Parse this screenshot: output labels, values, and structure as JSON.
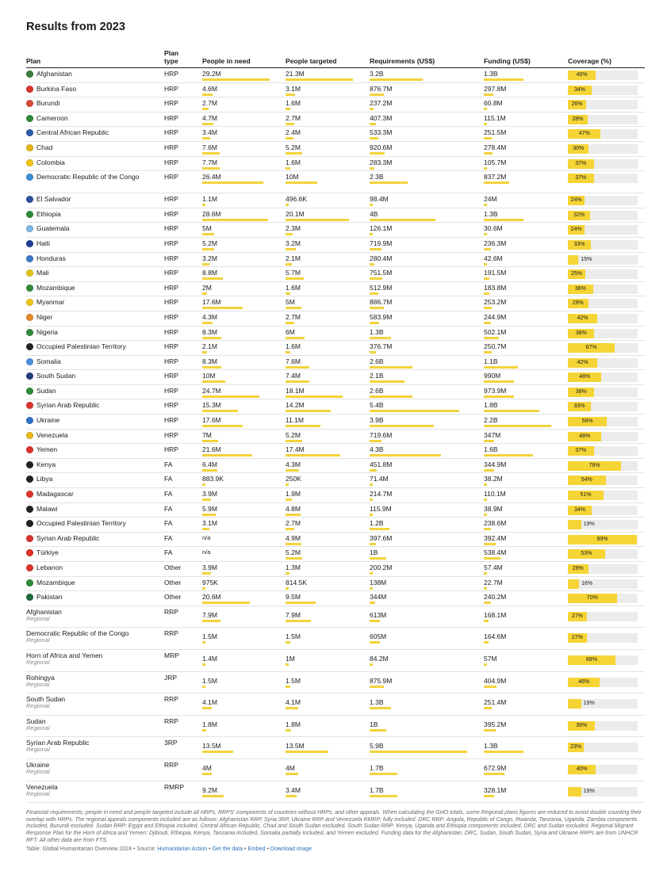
{
  "title": "Results from 2023",
  "headers": {
    "plan": "Plan",
    "plan_type": "Plan type",
    "pin": "People in need",
    "targeted": "People targeted",
    "requirements": "Requirements (US$)",
    "funding": "Funding (US$)",
    "coverage": "Coverage (%)"
  },
  "colors": {
    "bar": "#f3d33b",
    "coverage_track": "#ececec",
    "link": "#2a6ebb"
  },
  "rows": [
    {
      "plan": "Afghanistan",
      "sub": "",
      "type": "HRP",
      "pin": "29.2M",
      "pin_v": 29.2,
      "tgt": "21.3M",
      "tgt_v": 21.3,
      "req": "3.2B",
      "req_v": 3.2,
      "fund": "1.3B",
      "fund_v": 1.3,
      "cov": 40,
      "flag": "#3a7d3a"
    },
    {
      "plan": "Burkina Faso",
      "sub": "",
      "type": "HRP",
      "pin": "4.6M",
      "pin_v": 4.6,
      "tgt": "3.1M",
      "tgt_v": 3.1,
      "req": "876.7M",
      "req_v": 0.8767,
      "fund": "297.8M",
      "fund_v": 0.2978,
      "cov": 34,
      "flag": "#d8342d"
    },
    {
      "plan": "Burundi",
      "sub": "",
      "type": "HRP",
      "pin": "2.7M",
      "pin_v": 2.7,
      "tgt": "1.6M",
      "tgt_v": 1.6,
      "req": "237.2M",
      "req_v": 0.2372,
      "fund": "60.8M",
      "fund_v": 0.0608,
      "cov": 26,
      "flag": "#d84a3a"
    },
    {
      "plan": "Cameroon",
      "sub": "",
      "type": "HRP",
      "pin": "4.7M",
      "pin_v": 4.7,
      "tgt": "2.7M",
      "tgt_v": 2.7,
      "req": "407.3M",
      "req_v": 0.4073,
      "fund": "115.1M",
      "fund_v": 0.1151,
      "cov": 28,
      "flag": "#2f8a3a"
    },
    {
      "plan": "Central African Republic",
      "sub": "",
      "type": "HRP",
      "pin": "3.4M",
      "pin_v": 3.4,
      "tgt": "2.4M",
      "tgt_v": 2.4,
      "req": "533.3M",
      "req_v": 0.5333,
      "fund": "251.5M",
      "fund_v": 0.2515,
      "cov": 47,
      "flag": "#2e5ca8"
    },
    {
      "plan": "Chad",
      "sub": "",
      "type": "HRP",
      "pin": "7.6M",
      "pin_v": 7.6,
      "tgt": "5.2M",
      "tgt_v": 5.2,
      "req": "920.6M",
      "req_v": 0.9206,
      "fund": "278.4M",
      "fund_v": 0.2784,
      "cov": 30,
      "flag": "#e2b418"
    },
    {
      "plan": "Colombia",
      "sub": "",
      "type": "HRP",
      "pin": "7.7M",
      "pin_v": 7.7,
      "tgt": "1.6M",
      "tgt_v": 1.6,
      "req": "283.3M",
      "req_v": 0.2833,
      "fund": "105.7M",
      "fund_v": 0.1057,
      "cov": 37,
      "flag": "#f2c314"
    },
    {
      "plan": "Democratic Republic of the Congo",
      "sub": "",
      "type": "HRP",
      "pin": "26.4M",
      "pin_v": 26.4,
      "tgt": "10M",
      "tgt_v": 10,
      "req": "2.3B",
      "req_v": 2.3,
      "fund": "837.2M",
      "fund_v": 0.8372,
      "cov": 37,
      "flag": "#3a8fd6"
    },
    {
      "plan": "El Salvador",
      "sub": "",
      "type": "HRP",
      "pin": "1.1M",
      "pin_v": 1.1,
      "tgt": "496.6K",
      "tgt_v": 0.4966,
      "req": "98.4M",
      "req_v": 0.0984,
      "fund": "24M",
      "fund_v": 0.024,
      "cov": 24,
      "flag": "#2c4f9e"
    },
    {
      "plan": "Ethiopia",
      "sub": "",
      "type": "HRP",
      "pin": "28.6M",
      "pin_v": 28.6,
      "tgt": "20.1M",
      "tgt_v": 20.1,
      "req": "4B",
      "req_v": 4.0,
      "fund": "1.3B",
      "fund_v": 1.3,
      "cov": 32,
      "flag": "#2f8a3a"
    },
    {
      "plan": "Guatemala",
      "sub": "",
      "type": "HRP",
      "pin": "5M",
      "pin_v": 5.0,
      "tgt": "2.3M",
      "tgt_v": 2.3,
      "req": "126.1M",
      "req_v": 0.1261,
      "fund": "30.6M",
      "fund_v": 0.0306,
      "cov": 24,
      "flag": "#7fb6e6"
    },
    {
      "plan": "Haiti",
      "sub": "",
      "type": "HRP",
      "pin": "5.2M",
      "pin_v": 5.2,
      "tgt": "3.2M",
      "tgt_v": 3.2,
      "req": "719.9M",
      "req_v": 0.7199,
      "fund": "236.3M",
      "fund_v": 0.2363,
      "cov": 33,
      "flag": "#1f3f95"
    },
    {
      "plan": "Honduras",
      "sub": "",
      "type": "HRP",
      "pin": "3.2M",
      "pin_v": 3.2,
      "tgt": "2.1M",
      "tgt_v": 2.1,
      "req": "280.4M",
      "req_v": 0.2804,
      "fund": "42.6M",
      "fund_v": 0.0426,
      "cov": 15,
      "flag": "#3a78c6"
    },
    {
      "plan": "Mali",
      "sub": "",
      "type": "HRP",
      "pin": "8.8M",
      "pin_v": 8.8,
      "tgt": "5.7M",
      "tgt_v": 5.7,
      "req": "751.5M",
      "req_v": 0.7515,
      "fund": "191.5M",
      "fund_v": 0.1915,
      "cov": 25,
      "flag": "#e2c21a"
    },
    {
      "plan": "Mozambique",
      "sub": "",
      "type": "HRP",
      "pin": "2M",
      "pin_v": 2.0,
      "tgt": "1.6M",
      "tgt_v": 1.6,
      "req": "512.9M",
      "req_v": 0.5129,
      "fund": "183.8M",
      "fund_v": 0.1838,
      "cov": 36,
      "flag": "#2f8a3a"
    },
    {
      "plan": "Myanmar",
      "sub": "",
      "type": "HRP",
      "pin": "17.6M",
      "pin_v": 17.6,
      "tgt": "5M",
      "tgt_v": 5.0,
      "req": "886.7M",
      "req_v": 0.8867,
      "fund": "253.2M",
      "fund_v": 0.2532,
      "cov": 29,
      "flag": "#f1c21c"
    },
    {
      "plan": "Niger",
      "sub": "",
      "type": "HRP",
      "pin": "4.3M",
      "pin_v": 4.3,
      "tgt": "2.7M",
      "tgt_v": 2.7,
      "req": "583.9M",
      "req_v": 0.5839,
      "fund": "244.9M",
      "fund_v": 0.2449,
      "cov": 42,
      "flag": "#e78a2c"
    },
    {
      "plan": "Nigeria",
      "sub": "",
      "type": "HRP",
      "pin": "8.3M",
      "pin_v": 8.3,
      "tgt": "6M",
      "tgt_v": 6.0,
      "req": "1.3B",
      "req_v": 1.3,
      "fund": "502.1M",
      "fund_v": 0.5021,
      "cov": 38,
      "flag": "#2f8a3a"
    },
    {
      "plan": "Occupied Palestinian Territory",
      "sub": "",
      "type": "HRP",
      "pin": "2.1M",
      "pin_v": 2.1,
      "tgt": "1.6M",
      "tgt_v": 1.6,
      "req": "376.7M",
      "req_v": 0.3767,
      "fund": "250.7M",
      "fund_v": 0.2507,
      "cov": 67,
      "flag": "#222222"
    },
    {
      "plan": "Somalia",
      "sub": "",
      "type": "HRP",
      "pin": "8.3M",
      "pin_v": 8.3,
      "tgt": "7.6M",
      "tgt_v": 7.6,
      "req": "2.6B",
      "req_v": 2.6,
      "fund": "1.1B",
      "fund_v": 1.1,
      "cov": 42,
      "flag": "#4b92db"
    },
    {
      "plan": "South Sudan",
      "sub": "",
      "type": "HRP",
      "pin": "10M",
      "pin_v": 10.0,
      "tgt": "7.4M",
      "tgt_v": 7.4,
      "req": "2.1B",
      "req_v": 2.1,
      "fund": "990M",
      "fund_v": 0.99,
      "cov": 48,
      "flag": "#1f3f7a"
    },
    {
      "plan": "Sudan",
      "sub": "",
      "type": "HRP",
      "pin": "24.7M",
      "pin_v": 24.7,
      "tgt": "18.1M",
      "tgt_v": 18.1,
      "req": "2.6B",
      "req_v": 2.6,
      "fund": "973.9M",
      "fund_v": 0.9739,
      "cov": 38,
      "flag": "#2f8a3a"
    },
    {
      "plan": "Syrian Arab Republic",
      "sub": "",
      "type": "HRP",
      "pin": "15.3M",
      "pin_v": 15.3,
      "tgt": "14.2M",
      "tgt_v": 14.2,
      "req": "5.4B",
      "req_v": 5.4,
      "fund": "1.8B",
      "fund_v": 1.8,
      "cov": 33,
      "flag": "#d8342d"
    },
    {
      "plan": "Ukraine",
      "sub": "",
      "type": "HRP",
      "pin": "17.6M",
      "pin_v": 17.6,
      "tgt": "11.1M",
      "tgt_v": 11.1,
      "req": "3.9B",
      "req_v": 3.9,
      "fund": "2.2B",
      "fund_v": 2.2,
      "cov": 56,
      "flag": "#2f6fc7"
    },
    {
      "plan": "Venezuela",
      "sub": "",
      "type": "HRP",
      "pin": "7M",
      "pin_v": 7.0,
      "tgt": "5.2M",
      "tgt_v": 5.2,
      "req": "719.6M",
      "req_v": 0.7196,
      "fund": "347M",
      "fund_v": 0.347,
      "cov": 48,
      "flag": "#e8b81a"
    },
    {
      "plan": "Yemen",
      "sub": "",
      "type": "HRP",
      "pin": "21.6M",
      "pin_v": 21.6,
      "tgt": "17.4M",
      "tgt_v": 17.4,
      "req": "4.3B",
      "req_v": 4.3,
      "fund": "1.6B",
      "fund_v": 1.6,
      "cov": 37,
      "flag": "#d8342d"
    },
    {
      "plan": "Kenya",
      "sub": "",
      "type": "FA",
      "pin": "6.4M",
      "pin_v": 6.4,
      "tgt": "4.3M",
      "tgt_v": 4.3,
      "req": "451.8M",
      "req_v": 0.4518,
      "fund": "344.9M",
      "fund_v": 0.3449,
      "cov": 76,
      "flag": "#222222"
    },
    {
      "plan": "Libya",
      "sub": "",
      "type": "FA",
      "pin": "883.9K",
      "pin_v": 0.8839,
      "tgt": "250K",
      "tgt_v": 0.25,
      "req": "71.4M",
      "req_v": 0.0714,
      "fund": "38.2M",
      "fund_v": 0.0382,
      "cov": 54,
      "flag": "#222222"
    },
    {
      "plan": "Madagascar",
      "sub": "",
      "type": "FA",
      "pin": "3.9M",
      "pin_v": 3.9,
      "tgt": "1.9M",
      "tgt_v": 1.9,
      "req": "214.7M",
      "req_v": 0.2147,
      "fund": "110.1M",
      "fund_v": 0.1101,
      "cov": 51,
      "flag": "#d8342d"
    },
    {
      "plan": "Malawi",
      "sub": "",
      "type": "FA",
      "pin": "5.9M",
      "pin_v": 5.9,
      "tgt": "4.8M",
      "tgt_v": 4.8,
      "req": "115.9M",
      "req_v": 0.1159,
      "fund": "38.9M",
      "fund_v": 0.0389,
      "cov": 34,
      "flag": "#222222"
    },
    {
      "plan": "Occupied Palestinian Territory",
      "sub": "",
      "type": "FA",
      "pin": "3.1M",
      "pin_v": 3.1,
      "tgt": "2.7M",
      "tgt_v": 2.7,
      "req": "1.2B",
      "req_v": 1.2,
      "fund": "238.6M",
      "fund_v": 0.2386,
      "cov": 19,
      "flag": "#222222"
    },
    {
      "plan": "Syrian Arab Republic",
      "sub": "",
      "type": "FA",
      "pin": "n/a",
      "pin_v": 0,
      "tgt": "4.9M",
      "tgt_v": 4.9,
      "req": "397.6M",
      "req_v": 0.3976,
      "fund": "392.4M",
      "fund_v": 0.3924,
      "cov": 99,
      "flag": "#d8342d"
    },
    {
      "plan": "Türkiye",
      "sub": "",
      "type": "FA",
      "pin": "n/a",
      "pin_v": 0,
      "tgt": "5.2M",
      "tgt_v": 5.2,
      "req": "1B",
      "req_v": 1.0,
      "fund": "538.4M",
      "fund_v": 0.5384,
      "cov": 53,
      "flag": "#e0302a"
    },
    {
      "plan": "Lebanon",
      "sub": "",
      "type": "Other",
      "pin": "3.9M",
      "pin_v": 3.9,
      "tgt": "1.3M",
      "tgt_v": 1.3,
      "req": "200.2M",
      "req_v": 0.2002,
      "fund": "57.4M",
      "fund_v": 0.0574,
      "cov": 29,
      "flag": "#d8342d"
    },
    {
      "plan": "Mozambique",
      "sub": "",
      "type": "Other",
      "pin": "975K",
      "pin_v": 0.975,
      "tgt": "814.5K",
      "tgt_v": 0.8145,
      "req": "138M",
      "req_v": 0.138,
      "fund": "22.7M",
      "fund_v": 0.0227,
      "cov": 16,
      "flag": "#2f8a3a"
    },
    {
      "plan": "Pakistan",
      "sub": "",
      "type": "Other",
      "pin": "20.6M",
      "pin_v": 20.6,
      "tgt": "9.5M",
      "tgt_v": 9.5,
      "req": "344M",
      "req_v": 0.344,
      "fund": "240.2M",
      "fund_v": 0.2402,
      "cov": 70,
      "flag": "#1f6b3a"
    },
    {
      "plan": "Afghanistan",
      "sub": "Regional",
      "type": "RRP",
      "pin": "7.9M",
      "pin_v": 7.9,
      "tgt": "7.9M",
      "tgt_v": 7.9,
      "req": "613M",
      "req_v": 0.613,
      "fund": "168.1M",
      "fund_v": 0.1681,
      "cov": 27,
      "flag": ""
    },
    {
      "plan": "Democratic Republic of the Congo",
      "sub": "Regional",
      "type": "RRP",
      "pin": "1.5M",
      "pin_v": 1.5,
      "tgt": "1.5M",
      "tgt_v": 1.5,
      "req": "605M",
      "req_v": 0.605,
      "fund": "164.6M",
      "fund_v": 0.1646,
      "cov": 27,
      "flag": ""
    },
    {
      "plan": "Horn of Africa and Yemen",
      "sub": "Regional",
      "type": "MRP",
      "pin": "1.4M",
      "pin_v": 1.4,
      "tgt": "1M",
      "tgt_v": 1.0,
      "req": "84.2M",
      "req_v": 0.0842,
      "fund": "57M",
      "fund_v": 0.057,
      "cov": 68,
      "flag": ""
    },
    {
      "plan": "Rohingya",
      "sub": "Regional",
      "type": "JRP",
      "pin": "1.5M",
      "pin_v": 1.5,
      "tgt": "1.5M",
      "tgt_v": 1.5,
      "req": "875.9M",
      "req_v": 0.8759,
      "fund": "404.9M",
      "fund_v": 0.4049,
      "cov": 46,
      "flag": ""
    },
    {
      "plan": "South Sudan",
      "sub": "Regional",
      "type": "RRP",
      "pin": "4.1M",
      "pin_v": 4.1,
      "tgt": "4.1M",
      "tgt_v": 4.1,
      "req": "1.3B",
      "req_v": 1.3,
      "fund": "251.4M",
      "fund_v": 0.2514,
      "cov": 19,
      "flag": ""
    },
    {
      "plan": "Sudan",
      "sub": "Regional",
      "type": "RRP",
      "pin": "1.8M",
      "pin_v": 1.8,
      "tgt": "1.8M",
      "tgt_v": 1.8,
      "req": "1B",
      "req_v": 1.0,
      "fund": "395.2M",
      "fund_v": 0.3952,
      "cov": 39,
      "flag": ""
    },
    {
      "plan": "Syrian Arab Republic",
      "sub": "Regional",
      "type": "3RP",
      "pin": "13.5M",
      "pin_v": 13.5,
      "tgt": "13.5M",
      "tgt_v": 13.5,
      "req": "5.9B",
      "req_v": 5.9,
      "fund": "1.3B",
      "fund_v": 1.3,
      "cov": 23,
      "flag": ""
    },
    {
      "plan": "Ukraine",
      "sub": "Regional",
      "type": "RRP",
      "pin": "4M",
      "pin_v": 4.0,
      "tgt": "4M",
      "tgt_v": 4.0,
      "req": "1.7B",
      "req_v": 1.7,
      "fund": "672.9M",
      "fund_v": 0.6729,
      "cov": 40,
      "flag": ""
    },
    {
      "plan": "Venezuela",
      "sub": "Regional",
      "type": "RMRP",
      "pin": "9.2M",
      "pin_v": 9.2,
      "tgt": "3.4M",
      "tgt_v": 3.4,
      "req": "1.7B",
      "req_v": 1.7,
      "fund": "328.1M",
      "fund_v": 0.3281,
      "cov": 19,
      "flag": ""
    }
  ],
  "footnote": "Financial requirements, people in need and people targeted include all HRPs, RRPS' components of countries without HRPs, and other appeals. When calculating the GHO totals, some Regional plans figures are reduced to avoid double counting their overlap with HRPs. The regional appeals components included are as follows: Afghanistan RRP, Syria 3RP, Ukraine RRP and Venezuela RMRP: fully included. DRC RRP: Angola, Republic of Congo, Rwanda, Tanzania, Uganda, Zambia components included, Burundi excluded. Sudan RRP: Egypt and Ethiopia included, Central African Republic, Chad and South Sudan excluded. South Sudan RRP: Kenya, Uganda and Ethiopia components included, DRC and Sudan excluded. Regional Migrant Response Plan for the Horn of Africa and Yemen: Djibouti, Ethiopia, Kenya, Tanzania included, Somalia partially included, and Yemen excluded. Funding data for the Afghanistan, DRC, Sudan, South Sudan, Syria and Ukraine RRPs are from UNHCR RFT. All other data are from FTS.",
  "source": {
    "prefix": "Table: Global Humanitarian Overview 2024 • Source: ",
    "source_link": "Humanitarian Action",
    "sep1": " • ",
    "get_data": "Get the data",
    "sep2": " • ",
    "embed": "Embed",
    "sep3": " • ",
    "download": "Download image"
  }
}
